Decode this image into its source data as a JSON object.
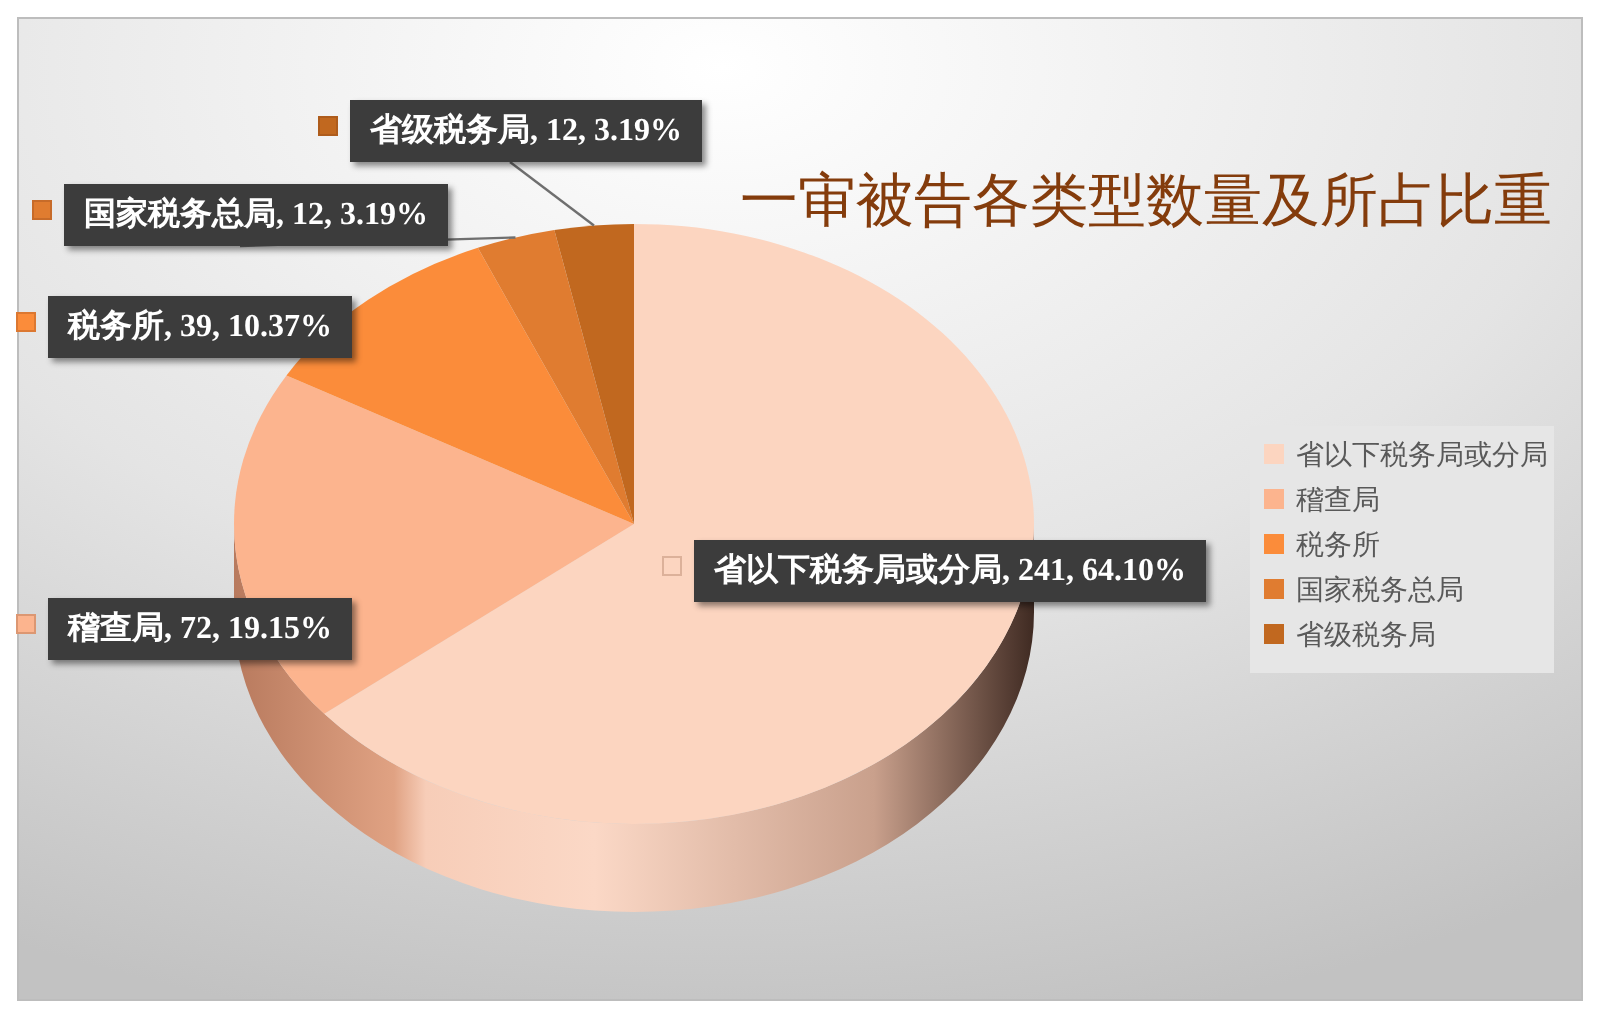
{
  "chart_data": {
    "type": "pie",
    "title": "一审被告各类型数量及所占比重",
    "categories": [
      "省以下税务局或分局",
      "稽查局",
      "税务所",
      "国家税务总局",
      "省级税务局"
    ],
    "values": [
      241,
      72,
      39,
      12,
      12
    ],
    "colors": [
      "#fcd5c0",
      "#fcb48e",
      "#fb8c3a",
      "#e07c30",
      "#c1681f"
    ],
    "value_labels": [
      "省以下税务局或分局, 241, 64.10%",
      "稽查局, 72, 19.15%",
      "税务所, 39, 10.37%",
      "国家税务总局, 12, 3.19%",
      "省级税务局, 12, 3.19%"
    ],
    "legend": "right"
  }
}
